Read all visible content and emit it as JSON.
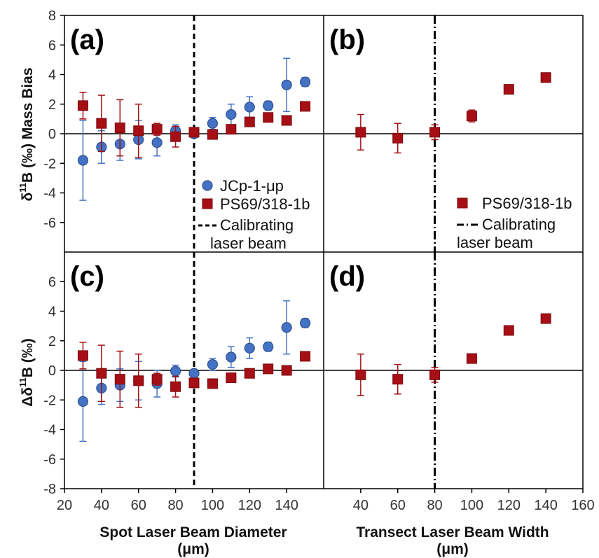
{
  "chart_data": {
    "type": "scatter",
    "colors": {
      "jcp": "#4472C4",
      "jcp_edge": "#2F528F",
      "ps": "#A50F15",
      "ps_edge": "#7A0A0E"
    },
    "y_axis_top": {
      "label_sup": "11",
      "label_pre": "δ",
      "label_post": "B (‰) Mass Bias",
      "ylim": [
        -8,
        8
      ],
      "ticks": [
        "8",
        "6",
        "4",
        "2",
        "0",
        "-2",
        "-4",
        "-6"
      ]
    },
    "y_axis_bottom": {
      "label_pre": "Δδ",
      "label_sup": "11",
      "label_post": "B (‰)",
      "ylim": [
        -8,
        8
      ],
      "ticks": [
        "6",
        "4",
        "2",
        "0",
        "-2",
        "-4",
        "-6",
        "-8"
      ]
    },
    "x_axis_left": {
      "label_line1": "Spot Laser Beam Diameter",
      "label_line2": "(μm)",
      "xlim": [
        20,
        160
      ],
      "ticks": [
        "20",
        "40",
        "60",
        "80",
        "100",
        "120",
        "140"
      ]
    },
    "x_axis_right": {
      "label_line1": "Transect Laser Beam Width",
      "label_line2": "(μm)",
      "xlim": [
        20,
        160
      ],
      "ticks": [
        "40",
        "60",
        "80",
        "100",
        "120",
        "140",
        "160"
      ]
    },
    "panels": [
      {
        "letter": "(a)",
        "calibration_x": 90,
        "line_style": "dashed",
        "legend": {
          "jcp": "JCp-1-μp",
          "ps": "PS69/318-1b",
          "line1": "Calibrating",
          "line2": "laser beam"
        },
        "series": [
          {
            "name": "JCp-1-μp",
            "marker": "circle",
            "x": [
              30,
              40,
              50,
              60,
              70,
              80,
              90,
              100,
              110,
              120,
              130,
              140,
              150
            ],
            "y": [
              -1.8,
              -0.9,
              -0.7,
              -0.4,
              -0.6,
              0.2,
              0.0,
              0.7,
              1.3,
              1.8,
              1.9,
              3.3,
              3.5
            ],
            "err": [
              2.7,
              1.1,
              1.1,
              1.3,
              0.9,
              0.4,
              0.2,
              0.4,
              0.7,
              0.7,
              0.3,
              1.8,
              0.3
            ]
          },
          {
            "name": "PS69/318-1b",
            "marker": "square",
            "x": [
              30,
              40,
              50,
              60,
              70,
              80,
              90,
              100,
              110,
              120,
              130,
              140,
              150
            ],
            "y": [
              1.9,
              0.7,
              0.4,
              0.2,
              0.3,
              -0.2,
              0.1,
              -0.05,
              0.3,
              0.8,
              1.1,
              0.9,
              1.85
            ],
            "err": [
              0.9,
              1.9,
              1.9,
              1.8,
              0.4,
              0.7,
              0.2,
              0.2,
              0.2,
              0.2,
              0.2,
              0.2,
              0.15
            ]
          }
        ]
      },
      {
        "letter": "(b)",
        "calibration_x": 80,
        "line_style": "dashdot",
        "legend": {
          "ps": "PS69/318-1b",
          "line1": "Calibrating",
          "line2": "laser beam"
        },
        "series": [
          {
            "name": "PS69/318-1b",
            "marker": "square",
            "x": [
              40,
              60,
              80,
              100,
              120,
              140
            ],
            "y": [
              0.1,
              -0.3,
              0.1,
              1.2,
              3.0,
              3.8
            ],
            "err": [
              1.2,
              1.0,
              0.5,
              0.4,
              0.1,
              0.1
            ]
          }
        ]
      },
      {
        "letter": "(c)",
        "calibration_x": 90,
        "line_style": "dashed",
        "series": [
          {
            "name": "JCp-1-μp",
            "marker": "circle",
            "x": [
              30,
              40,
              50,
              60,
              70,
              80,
              90,
              100,
              110,
              120,
              130,
              140,
              150
            ],
            "y": [
              -2.1,
              -1.2,
              -1.0,
              -0.7,
              -0.9,
              -0.05,
              -0.2,
              0.4,
              0.9,
              1.5,
              1.6,
              2.9,
              3.2
            ],
            "err": [
              2.7,
              1.1,
              1.1,
              1.3,
              0.9,
              0.4,
              0.2,
              0.4,
              0.7,
              0.7,
              0.3,
              1.8,
              0.3
            ]
          },
          {
            "name": "PS69/318-1b",
            "marker": "square",
            "x": [
              30,
              40,
              50,
              60,
              70,
              80,
              90,
              100,
              110,
              120,
              130,
              140,
              150
            ],
            "y": [
              1.0,
              -0.2,
              -0.6,
              -0.7,
              -0.6,
              -1.1,
              -0.85,
              -0.9,
              -0.5,
              -0.2,
              0.1,
              0.0,
              0.95
            ],
            "err": [
              0.9,
              1.9,
              1.9,
              1.8,
              0.4,
              0.7,
              0.2,
              0.2,
              0.2,
              0.2,
              0.2,
              0.2,
              0.15
            ]
          }
        ]
      },
      {
        "letter": "(d)",
        "calibration_x": 80,
        "line_style": "dashdot",
        "series": [
          {
            "name": "PS69/318-1b",
            "marker": "square",
            "x": [
              40,
              60,
              80,
              100,
              120,
              140
            ],
            "y": [
              -0.3,
              -0.6,
              -0.3,
              0.8,
              2.7,
              3.5
            ],
            "err": [
              1.4,
              1.0,
              0.5,
              0.2,
              0.1,
              0.1
            ]
          }
        ]
      }
    ]
  }
}
